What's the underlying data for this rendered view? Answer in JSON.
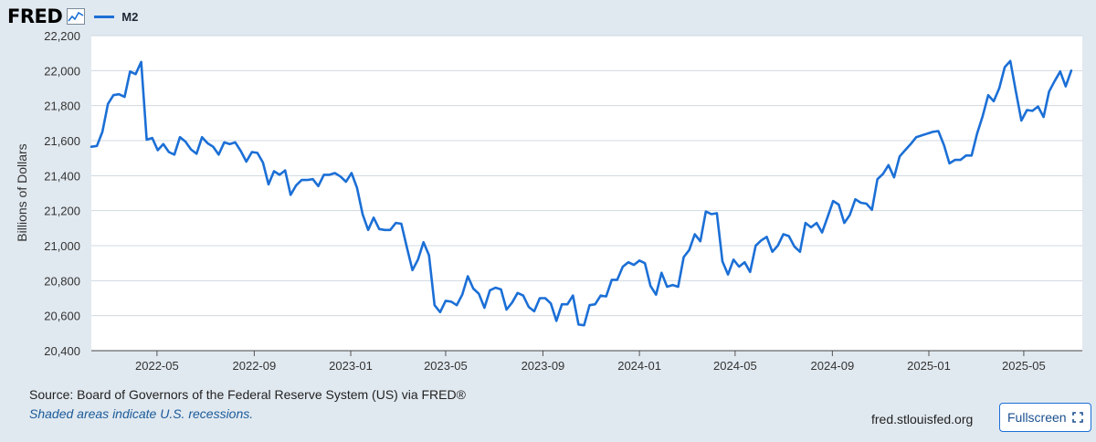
{
  "header": {
    "logo_text": "FRED",
    "logo_icon": "line-chart-icon",
    "legend_label": "M2"
  },
  "colors": {
    "series": "#1b6fd6",
    "plot_background": "#ffffff",
    "page_background": "#e1e9f0",
    "grid": "#cfd8e0"
  },
  "chart_data": {
    "type": "line",
    "title": "",
    "xlabel": "",
    "ylabel": "Billions of Dollars",
    "ylim": [
      20400,
      22200
    ],
    "xlim": [
      "2022-02-07",
      "2025-07-14"
    ],
    "yticks": [
      20400,
      20600,
      20800,
      21000,
      21200,
      21400,
      21600,
      21800,
      22000,
      22200
    ],
    "ytick_labels": [
      "20,400",
      "20,600",
      "20,800",
      "21,000",
      "21,200",
      "21,400",
      "21,600",
      "21,800",
      "22,000",
      "22,200"
    ],
    "xticks": [
      "2022-05-01",
      "2022-09-01",
      "2023-01-01",
      "2023-05-01",
      "2023-09-01",
      "2024-01-01",
      "2024-05-01",
      "2024-09-01",
      "2025-01-01",
      "2025-05-01"
    ],
    "xtick_labels": [
      "2022-05",
      "2022-09",
      "2023-01",
      "2023-05",
      "2023-09",
      "2024-01",
      "2024-05",
      "2024-09",
      "2025-01",
      "2025-05"
    ],
    "grid": true,
    "legend_position": "top-left",
    "series": [
      {
        "name": "M2",
        "color": "#1b6fd6",
        "points": [
          [
            "2022-02-07",
            21565
          ],
          [
            "2022-02-14",
            21570
          ],
          [
            "2022-02-21",
            21650
          ],
          [
            "2022-02-28",
            21810
          ],
          [
            "2022-03-07",
            21860
          ],
          [
            "2022-03-14",
            21865
          ],
          [
            "2022-03-21",
            21850
          ],
          [
            "2022-03-28",
            21995
          ],
          [
            "2022-04-04",
            21980
          ],
          [
            "2022-04-11",
            22050
          ],
          [
            "2022-04-18",
            21605
          ],
          [
            "2022-04-25",
            21615
          ],
          [
            "2022-05-02",
            21545
          ],
          [
            "2022-05-09",
            21580
          ],
          [
            "2022-05-16",
            21535
          ],
          [
            "2022-05-23",
            21520
          ],
          [
            "2022-05-30",
            21620
          ],
          [
            "2022-06-06",
            21595
          ],
          [
            "2022-06-13",
            21550
          ],
          [
            "2022-06-20",
            21525
          ],
          [
            "2022-06-27",
            21620
          ],
          [
            "2022-07-04",
            21585
          ],
          [
            "2022-07-11",
            21565
          ],
          [
            "2022-07-18",
            21520
          ],
          [
            "2022-07-25",
            21590
          ],
          [
            "2022-08-01",
            21580
          ],
          [
            "2022-08-08",
            21590
          ],
          [
            "2022-08-15",
            21540
          ],
          [
            "2022-08-22",
            21480
          ],
          [
            "2022-08-29",
            21535
          ],
          [
            "2022-09-05",
            21530
          ],
          [
            "2022-09-12",
            21475
          ],
          [
            "2022-09-19",
            21350
          ],
          [
            "2022-09-26",
            21425
          ],
          [
            "2022-10-03",
            21405
          ],
          [
            "2022-10-10",
            21430
          ],
          [
            "2022-10-17",
            21290
          ],
          [
            "2022-10-24",
            21345
          ],
          [
            "2022-10-31",
            21375
          ],
          [
            "2022-11-07",
            21375
          ],
          [
            "2022-11-14",
            21380
          ],
          [
            "2022-11-21",
            21340
          ],
          [
            "2022-11-28",
            21405
          ],
          [
            "2022-12-05",
            21405
          ],
          [
            "2022-12-12",
            21415
          ],
          [
            "2022-12-19",
            21395
          ],
          [
            "2022-12-26",
            21365
          ],
          [
            "2023-01-02",
            21415
          ],
          [
            "2023-01-09",
            21330
          ],
          [
            "2023-01-16",
            21180
          ],
          [
            "2023-01-23",
            21090
          ],
          [
            "2023-01-30",
            21160
          ],
          [
            "2023-02-06",
            21095
          ],
          [
            "2023-02-13",
            21090
          ],
          [
            "2023-02-20",
            21090
          ],
          [
            "2023-02-27",
            21130
          ],
          [
            "2023-03-06",
            21125
          ],
          [
            "2023-03-13",
            20990
          ],
          [
            "2023-03-20",
            20860
          ],
          [
            "2023-03-27",
            20920
          ],
          [
            "2023-04-03",
            21020
          ],
          [
            "2023-04-10",
            20945
          ],
          [
            "2023-04-17",
            20660
          ],
          [
            "2023-04-24",
            20620
          ],
          [
            "2023-05-01",
            20685
          ],
          [
            "2023-05-08",
            20680
          ],
          [
            "2023-05-15",
            20660
          ],
          [
            "2023-05-22",
            20720
          ],
          [
            "2023-05-29",
            20825
          ],
          [
            "2023-06-05",
            20755
          ],
          [
            "2023-06-12",
            20725
          ],
          [
            "2023-06-19",
            20645
          ],
          [
            "2023-06-26",
            20745
          ],
          [
            "2023-07-03",
            20760
          ],
          [
            "2023-07-10",
            20750
          ],
          [
            "2023-07-17",
            20635
          ],
          [
            "2023-07-24",
            20675
          ],
          [
            "2023-07-31",
            20730
          ],
          [
            "2023-08-07",
            20715
          ],
          [
            "2023-08-14",
            20650
          ],
          [
            "2023-08-21",
            20625
          ],
          [
            "2023-08-28",
            20700
          ],
          [
            "2023-09-04",
            20700
          ],
          [
            "2023-09-11",
            20670
          ],
          [
            "2023-09-18",
            20570
          ],
          [
            "2023-09-25",
            20665
          ],
          [
            "2023-10-02",
            20665
          ],
          [
            "2023-10-09",
            20715
          ],
          [
            "2023-10-16",
            20550
          ],
          [
            "2023-10-23",
            20545
          ],
          [
            "2023-10-30",
            20660
          ],
          [
            "2023-11-06",
            20665
          ],
          [
            "2023-11-13",
            20715
          ],
          [
            "2023-11-20",
            20710
          ],
          [
            "2023-11-27",
            20805
          ],
          [
            "2023-12-04",
            20805
          ],
          [
            "2023-12-11",
            20880
          ],
          [
            "2023-12-18",
            20905
          ],
          [
            "2023-12-25",
            20890
          ],
          [
            "2024-01-01",
            20915
          ],
          [
            "2024-01-08",
            20900
          ],
          [
            "2024-01-15",
            20770
          ],
          [
            "2024-01-22",
            20720
          ],
          [
            "2024-01-29",
            20845
          ],
          [
            "2024-02-05",
            20765
          ],
          [
            "2024-02-12",
            20775
          ],
          [
            "2024-02-19",
            20765
          ],
          [
            "2024-02-26",
            20935
          ],
          [
            "2024-03-04",
            20975
          ],
          [
            "2024-03-11",
            21065
          ],
          [
            "2024-03-18",
            21025
          ],
          [
            "2024-03-25",
            21195
          ],
          [
            "2024-04-01",
            21180
          ],
          [
            "2024-04-08",
            21185
          ],
          [
            "2024-04-15",
            20910
          ],
          [
            "2024-04-22",
            20835
          ],
          [
            "2024-04-29",
            20920
          ],
          [
            "2024-05-06",
            20880
          ],
          [
            "2024-05-13",
            20905
          ],
          [
            "2024-05-20",
            20850
          ],
          [
            "2024-05-27",
            21000
          ],
          [
            "2024-06-03",
            21030
          ],
          [
            "2024-06-10",
            21050
          ],
          [
            "2024-06-17",
            20965
          ],
          [
            "2024-06-24",
            21000
          ],
          [
            "2024-07-01",
            21065
          ],
          [
            "2024-07-08",
            21055
          ],
          [
            "2024-07-15",
            20995
          ],
          [
            "2024-07-22",
            20965
          ],
          [
            "2024-07-29",
            21130
          ],
          [
            "2024-08-05",
            21105
          ],
          [
            "2024-08-12",
            21130
          ],
          [
            "2024-08-19",
            21075
          ],
          [
            "2024-08-26",
            21165
          ],
          [
            "2024-09-02",
            21255
          ],
          [
            "2024-09-09",
            21235
          ],
          [
            "2024-09-16",
            21130
          ],
          [
            "2024-09-23",
            21175
          ],
          [
            "2024-09-30",
            21265
          ],
          [
            "2024-10-07",
            21245
          ],
          [
            "2024-10-14",
            21240
          ],
          [
            "2024-10-21",
            21205
          ],
          [
            "2024-10-28",
            21380
          ],
          [
            "2024-11-04",
            21410
          ],
          [
            "2024-11-11",
            21460
          ],
          [
            "2024-11-18",
            21390
          ],
          [
            "2024-11-25",
            21510
          ],
          [
            "2024-12-02",
            21545
          ],
          [
            "2024-12-09",
            21580
          ],
          [
            "2024-12-16",
            21620
          ],
          [
            "2024-12-23",
            21630
          ],
          [
            "2024-12-30",
            21640
          ],
          [
            "2025-01-06",
            21650
          ],
          [
            "2025-01-13",
            21655
          ],
          [
            "2025-01-20",
            21575
          ],
          [
            "2025-01-27",
            21470
          ],
          [
            "2025-02-03",
            21490
          ],
          [
            "2025-02-10",
            21490
          ],
          [
            "2025-02-17",
            21515
          ],
          [
            "2025-02-24",
            21515
          ],
          [
            "2025-03-03",
            21640
          ],
          [
            "2025-03-10",
            21740
          ],
          [
            "2025-03-17",
            21860
          ],
          [
            "2025-03-24",
            21825
          ],
          [
            "2025-03-31",
            21900
          ],
          [
            "2025-04-07",
            22020
          ],
          [
            "2025-04-14",
            22055
          ],
          [
            "2025-04-21",
            21880
          ],
          [
            "2025-04-28",
            21715
          ],
          [
            "2025-05-05",
            21775
          ],
          [
            "2025-05-12",
            21770
          ],
          [
            "2025-05-19",
            21795
          ],
          [
            "2025-05-26",
            21735
          ],
          [
            "2025-06-02",
            21880
          ],
          [
            "2025-06-09",
            21940
          ],
          [
            "2025-06-16",
            21995
          ],
          [
            "2025-06-23",
            21910
          ],
          [
            "2025-06-30",
            22000
          ]
        ]
      }
    ]
  },
  "footer": {
    "source": "Source: Board of Governors of the Federal Reserve System (US) via FRED®",
    "note": "Shaded areas indicate U.S. recessions.",
    "site": "fred.stlouisfed.org",
    "fullscreen_label": "Fullscreen",
    "fullscreen_icon": "expand-icon"
  }
}
